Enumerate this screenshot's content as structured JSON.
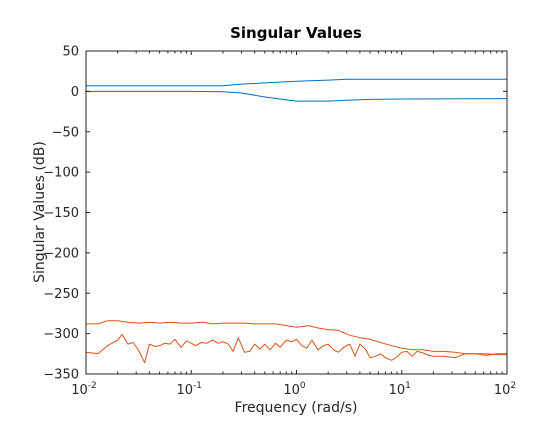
{
  "chart_data": {
    "type": "line",
    "title": "Singular Values",
    "xlabel": "Frequency (rad/s)",
    "ylabel": "Singular Values (dB)",
    "xscale": "log",
    "xlim": [
      0.01,
      100
    ],
    "ylim": [
      -350,
      50
    ],
    "xticks": [
      0.01,
      0.1,
      1,
      10,
      100
    ],
    "xtick_labels": [
      [
        "10",
        "-2"
      ],
      [
        "10",
        "-1"
      ],
      [
        "10",
        "0"
      ],
      [
        "10",
        "1"
      ],
      [
        "10",
        "2"
      ]
    ],
    "yticks": [
      50,
      0,
      -50,
      -100,
      -150,
      -200,
      -250,
      -300,
      -350
    ],
    "ytick_labels": [
      "50",
      "0",
      "−50",
      "−100",
      "−150",
      "−200",
      "−250",
      "−300",
      "−350"
    ],
    "grid": false,
    "colors": {
      "sv_top": "#0072BD",
      "sv_noise": "#D95319"
    },
    "series": [
      {
        "color": "#0072BD",
        "points": [
          [
            0.01,
            7
          ],
          [
            0.1,
            7
          ],
          [
            0.2,
            7
          ],
          [
            0.3,
            9
          ],
          [
            0.5,
            10.5
          ],
          [
            1,
            12.5
          ],
          [
            2,
            14
          ],
          [
            3,
            15
          ],
          [
            10,
            15
          ],
          [
            100,
            15
          ]
        ]
      },
      {
        "color": "#0072BD",
        "points": [
          [
            0.01,
            0
          ],
          [
            0.1,
            0
          ],
          [
            0.2,
            -0.5
          ],
          [
            0.3,
            -2
          ],
          [
            0.5,
            -7
          ],
          [
            0.8,
            -10.5
          ],
          [
            1,
            -12
          ],
          [
            2,
            -12
          ],
          [
            3,
            -11
          ],
          [
            5,
            -10
          ],
          [
            10,
            -9.5
          ],
          [
            100,
            -9
          ]
        ]
      },
      {
        "color": "#D95319",
        "points": [
          [
            0.01,
            -288
          ],
          [
            0.013,
            -288
          ],
          [
            0.016,
            -284
          ],
          [
            0.02,
            -284
          ],
          [
            0.025,
            -286
          ],
          [
            0.032,
            -287
          ],
          [
            0.04,
            -286
          ],
          [
            0.05,
            -287
          ],
          [
            0.063,
            -286
          ],
          [
            0.08,
            -287
          ],
          [
            0.1,
            -287
          ],
          [
            0.13,
            -286
          ],
          [
            0.16,
            -288
          ],
          [
            0.2,
            -287
          ],
          [
            0.25,
            -287
          ],
          [
            0.32,
            -287
          ],
          [
            0.4,
            -288
          ],
          [
            0.5,
            -288
          ],
          [
            0.63,
            -288
          ],
          [
            0.8,
            -290
          ],
          [
            1,
            -292
          ],
          [
            1.3,
            -290
          ],
          [
            1.6,
            -293
          ],
          [
            2,
            -295
          ],
          [
            2.5,
            -296
          ],
          [
            3.2,
            -302
          ],
          [
            4,
            -305
          ],
          [
            5,
            -307
          ],
          [
            6.3,
            -311
          ],
          [
            8,
            -315
          ],
          [
            10,
            -318
          ],
          [
            12.6,
            -320
          ],
          [
            16,
            -320
          ],
          [
            20,
            -322
          ],
          [
            25,
            -322
          ],
          [
            32,
            -323
          ],
          [
            40,
            -325
          ],
          [
            50,
            -325
          ],
          [
            63,
            -325
          ],
          [
            80,
            -326
          ],
          [
            100,
            -326
          ]
        ]
      },
      {
        "color": "#D95319",
        "points": [
          [
            0.01,
            -323
          ],
          [
            0.013,
            -325
          ],
          [
            0.016,
            -315
          ],
          [
            0.02,
            -308
          ],
          [
            0.022,
            -301
          ],
          [
            0.025,
            -313
          ],
          [
            0.028,
            -311
          ],
          [
            0.032,
            -322
          ],
          [
            0.036,
            -336
          ],
          [
            0.04,
            -313
          ],
          [
            0.045,
            -316
          ],
          [
            0.05,
            -315
          ],
          [
            0.056,
            -312
          ],
          [
            0.063,
            -313
          ],
          [
            0.07,
            -307
          ],
          [
            0.08,
            -317
          ],
          [
            0.09,
            -309
          ],
          [
            0.1,
            -312
          ],
          [
            0.11,
            -315
          ],
          [
            0.125,
            -311
          ],
          [
            0.14,
            -312
          ],
          [
            0.16,
            -308
          ],
          [
            0.18,
            -312
          ],
          [
            0.2,
            -310
          ],
          [
            0.225,
            -313
          ],
          [
            0.25,
            -322
          ],
          [
            0.28,
            -305
          ],
          [
            0.32,
            -323
          ],
          [
            0.36,
            -322
          ],
          [
            0.4,
            -313
          ],
          [
            0.45,
            -319
          ],
          [
            0.5,
            -313
          ],
          [
            0.56,
            -320
          ],
          [
            0.63,
            -312
          ],
          [
            0.7,
            -317
          ],
          [
            0.8,
            -308
          ],
          [
            0.9,
            -310
          ],
          [
            1,
            -307
          ],
          [
            1.12,
            -315
          ],
          [
            1.25,
            -318
          ],
          [
            1.4,
            -308
          ],
          [
            1.6,
            -320
          ],
          [
            1.8,
            -315
          ],
          [
            2,
            -313
          ],
          [
            2.25,
            -320
          ],
          [
            2.5,
            -323
          ],
          [
            2.8,
            -317
          ],
          [
            3.2,
            -313
          ],
          [
            3.6,
            -328
          ],
          [
            4,
            -313
          ],
          [
            4.5,
            -319
          ],
          [
            5,
            -330
          ],
          [
            5.6,
            -328
          ],
          [
            6.3,
            -325
          ],
          [
            7,
            -330
          ],
          [
            8,
            -333
          ],
          [
            9,
            -329
          ],
          [
            10,
            -323
          ],
          [
            11.2,
            -322
          ],
          [
            12.6,
            -328
          ],
          [
            14,
            -322
          ],
          [
            16,
            -324
          ],
          [
            18,
            -327
          ],
          [
            20,
            -328
          ],
          [
            25,
            -328
          ],
          [
            32,
            -330
          ],
          [
            40,
            -325
          ],
          [
            50,
            -325
          ],
          [
            63,
            -327
          ],
          [
            80,
            -325
          ],
          [
            100,
            -325
          ]
        ]
      }
    ]
  }
}
